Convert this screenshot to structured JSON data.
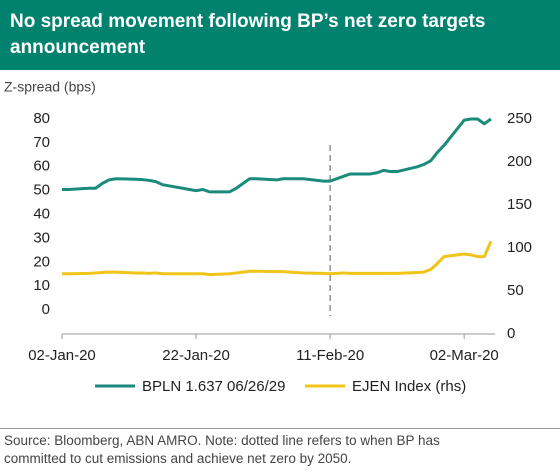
{
  "chart_data": {
    "type": "line",
    "title": "No spread movement following BP’s net zero targets announcement",
    "y_axis_label": "Z-spread (bps)",
    "source": "Source: Bloomberg, ABN AMRO. Note: dotted line refers to when BP has committed to cut emissions and achieve net zero by 2050.",
    "x": [
      "2020-01-02",
      "2020-01-03",
      "2020-01-06",
      "2020-01-07",
      "2020-01-08",
      "2020-01-09",
      "2020-01-10",
      "2020-01-13",
      "2020-01-14",
      "2020-01-15",
      "2020-01-16",
      "2020-01-17",
      "2020-01-20",
      "2020-01-21",
      "2020-01-22",
      "2020-01-23",
      "2020-01-24",
      "2020-01-27",
      "2020-01-28",
      "2020-01-29",
      "2020-01-30",
      "2020-01-31",
      "2020-02-03",
      "2020-02-04",
      "2020-02-05",
      "2020-02-06",
      "2020-02-07",
      "2020-02-10",
      "2020-02-11",
      "2020-02-12",
      "2020-02-13",
      "2020-02-14",
      "2020-02-17",
      "2020-02-18",
      "2020-02-19",
      "2020-02-20",
      "2020-02-21",
      "2020-02-24",
      "2020-02-25",
      "2020-02-26",
      "2020-02-27",
      "2020-02-28",
      "2020-03-02",
      "2020-03-03",
      "2020-03-04",
      "2020-03-05",
      "2020-03-06"
    ],
    "series": [
      {
        "name": "BPLN 1.637 06/26/29",
        "color": "#1a8b7b",
        "axis": "y",
        "values": [
          50.5,
          50.5,
          51,
          51,
          53,
          54.5,
          55,
          54.8,
          54.6,
          54.3,
          53.8,
          52.5,
          51,
          50.5,
          50,
          50.5,
          49.5,
          49.5,
          51,
          53,
          55,
          55,
          54.5,
          55,
          55,
          55,
          55,
          54,
          54,
          55,
          56,
          57,
          57,
          57.5,
          58.5,
          58,
          58,
          60,
          61,
          62.5,
          66,
          69,
          79.5,
          80,
          80,
          78,
          80
        ]
      },
      {
        "name": "EJEN Index (rhs)",
        "color": "#f0c419",
        "axis": "y2",
        "values": [
          70,
          70,
          70.5,
          71,
          71.5,
          72,
          72,
          71,
          71,
          70.5,
          71,
          70,
          70,
          70,
          70,
          70,
          69,
          70,
          71,
          72,
          73,
          73,
          72.5,
          72.5,
          72,
          71.5,
          71,
          70.5,
          70,
          70.5,
          71,
          70.5,
          70.5,
          70.5,
          70.5,
          70.5,
          70.5,
          71.5,
          72,
          75,
          82,
          90,
          93,
          92,
          90,
          90,
          108
        ]
      }
    ],
    "xlim": [
      "2020-01-02",
      "2020-03-06"
    ],
    "xticks": [
      {
        "value": "2020-01-02",
        "label": "02-Jan-20"
      },
      {
        "value": "2020-01-22",
        "label": "22-Jan-20"
      },
      {
        "value": "2020-02-11",
        "label": "11-Feb-20"
      },
      {
        "value": "2020-03-02",
        "label": "02-Mar-20"
      }
    ],
    "ylim": [
      -10,
      80
    ],
    "yticks": [
      0,
      10,
      20,
      30,
      40,
      50,
      60,
      70,
      80
    ],
    "y2lim": [
      0,
      250
    ],
    "y2ticks": [
      0,
      50,
      100,
      150,
      200,
      250
    ],
    "vline": "2020-02-11",
    "grid": false,
    "legend": "bottom"
  }
}
